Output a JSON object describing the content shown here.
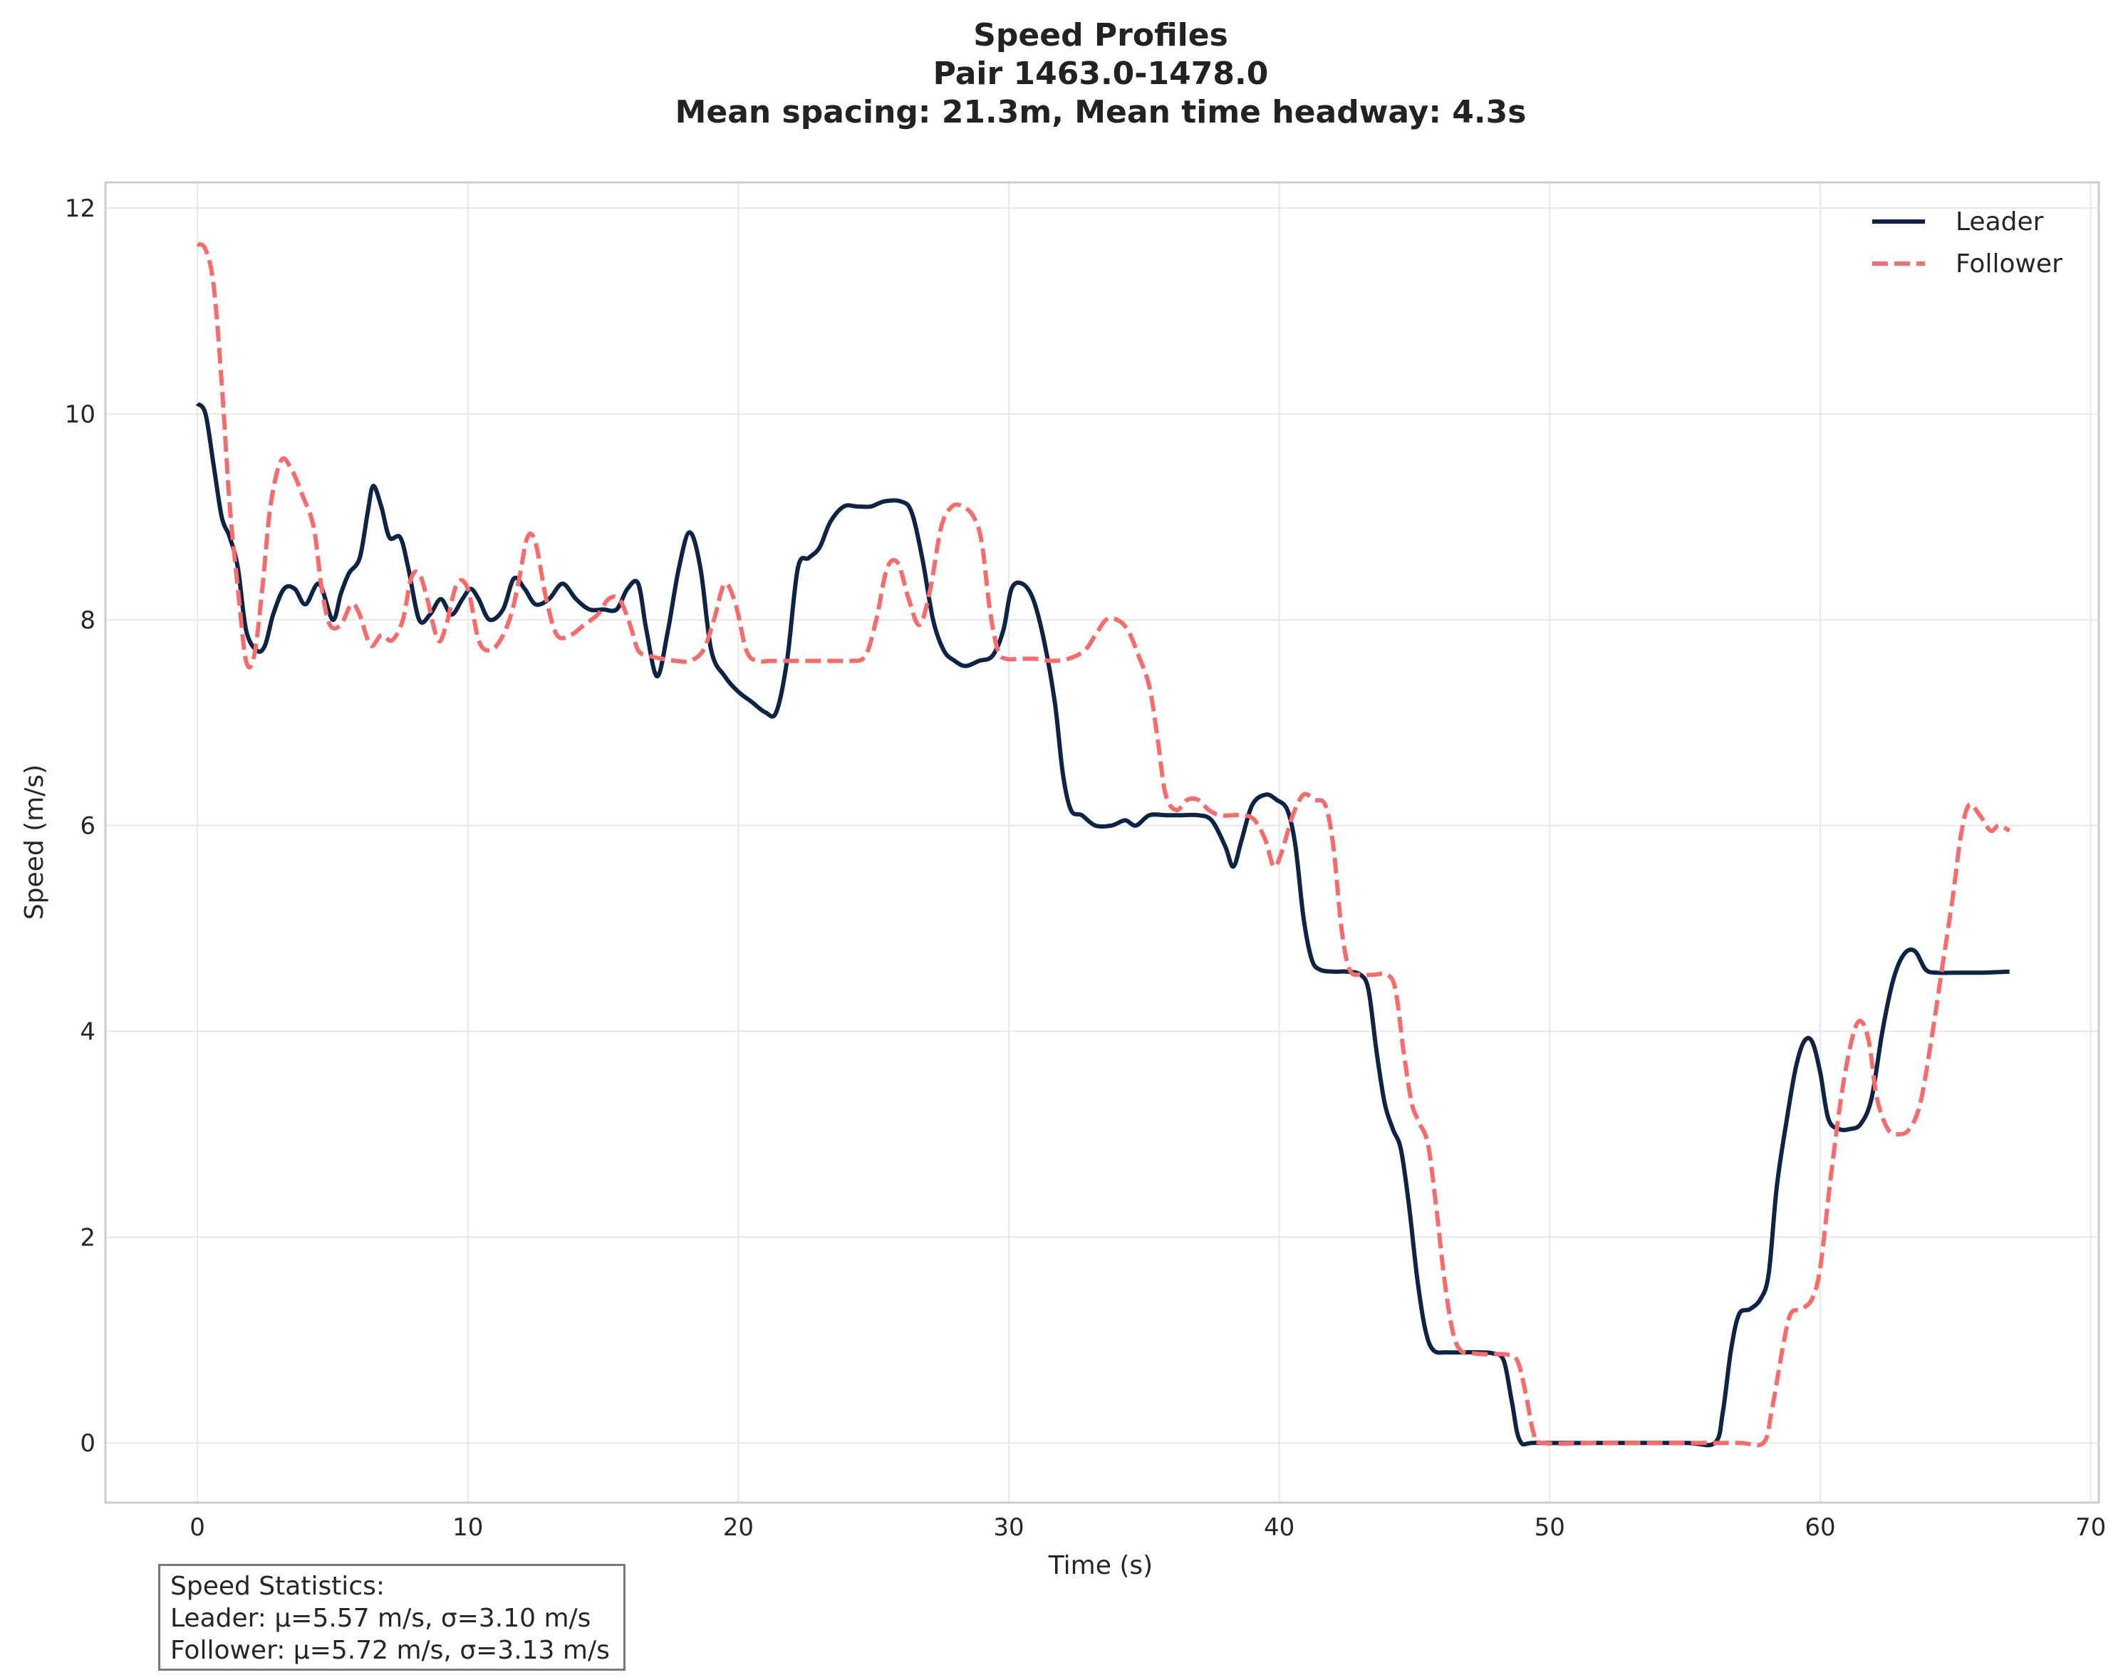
{
  "chart_data": {
    "type": "line",
    "title_lines": [
      "Speed Profiles",
      "Pair 1463.0-1478.0",
      "Mean spacing: 21.3m, Mean time headway: 4.3s"
    ],
    "xlabel": "Time (s)",
    "ylabel": "Speed (m/s)",
    "xlim": [
      -3.4,
      70.3
    ],
    "ylim": [
      -0.58,
      12.25
    ],
    "xticks": [
      0,
      10,
      20,
      30,
      40,
      50,
      60,
      70
    ],
    "yticks": [
      0,
      2,
      4,
      6,
      8,
      10,
      12
    ],
    "grid": true,
    "legend_position": "top-right",
    "series": [
      {
        "name": "Leader",
        "color": "#0d2447",
        "dash": "solid",
        "points": [
          [
            0,
            10.1
          ],
          [
            0.3,
            10.0
          ],
          [
            0.6,
            9.5
          ],
          [
            0.9,
            9.0
          ],
          [
            1.2,
            8.8
          ],
          [
            1.5,
            8.5
          ],
          [
            1.8,
            7.9
          ],
          [
            2.2,
            7.7
          ],
          [
            2.5,
            7.75
          ],
          [
            2.8,
            8.05
          ],
          [
            3.2,
            8.3
          ],
          [
            3.6,
            8.3
          ],
          [
            4.0,
            8.15
          ],
          [
            4.5,
            8.35
          ],
          [
            5.0,
            8.0
          ],
          [
            5.3,
            8.25
          ],
          [
            5.6,
            8.45
          ],
          [
            6.0,
            8.6
          ],
          [
            6.3,
            9.05
          ],
          [
            6.5,
            9.3
          ],
          [
            6.8,
            9.1
          ],
          [
            7.1,
            8.8
          ],
          [
            7.5,
            8.8
          ],
          [
            7.8,
            8.5
          ],
          [
            8.2,
            8.0
          ],
          [
            8.6,
            8.05
          ],
          [
            9.0,
            8.2
          ],
          [
            9.4,
            8.05
          ],
          [
            9.8,
            8.2
          ],
          [
            10.1,
            8.3
          ],
          [
            10.4,
            8.2
          ],
          [
            10.8,
            8.0
          ],
          [
            11.3,
            8.1
          ],
          [
            11.7,
            8.4
          ],
          [
            12.1,
            8.3
          ],
          [
            12.5,
            8.15
          ],
          [
            13.0,
            8.2
          ],
          [
            13.5,
            8.35
          ],
          [
            14.0,
            8.2
          ],
          [
            14.5,
            8.1
          ],
          [
            15.0,
            8.1
          ],
          [
            15.5,
            8.1
          ],
          [
            15.9,
            8.3
          ],
          [
            16.3,
            8.35
          ],
          [
            16.6,
            7.9
          ],
          [
            17.0,
            7.45
          ],
          [
            17.4,
            7.9
          ],
          [
            17.8,
            8.5
          ],
          [
            18.2,
            8.85
          ],
          [
            18.6,
            8.5
          ],
          [
            19.0,
            7.7
          ],
          [
            19.5,
            7.45
          ],
          [
            20.0,
            7.3
          ],
          [
            20.5,
            7.2
          ],
          [
            21.0,
            7.1
          ],
          [
            21.4,
            7.1
          ],
          [
            21.8,
            7.6
          ],
          [
            22.2,
            8.5
          ],
          [
            22.6,
            8.6
          ],
          [
            23.0,
            8.7
          ],
          [
            23.4,
            8.95
          ],
          [
            23.9,
            9.1
          ],
          [
            24.4,
            9.1
          ],
          [
            24.9,
            9.1
          ],
          [
            25.4,
            9.15
          ],
          [
            26.0,
            9.15
          ],
          [
            26.4,
            9.05
          ],
          [
            26.8,
            8.6
          ],
          [
            27.2,
            8.0
          ],
          [
            27.6,
            7.7
          ],
          [
            28.0,
            7.6
          ],
          [
            28.4,
            7.55
          ],
          [
            28.9,
            7.6
          ],
          [
            29.4,
            7.65
          ],
          [
            29.8,
            7.9
          ],
          [
            30.1,
            8.3
          ],
          [
            30.5,
            8.35
          ],
          [
            30.9,
            8.2
          ],
          [
            31.3,
            7.8
          ],
          [
            31.7,
            7.2
          ],
          [
            32.0,
            6.5
          ],
          [
            32.3,
            6.15
          ],
          [
            32.7,
            6.1
          ],
          [
            33.2,
            6.0
          ],
          [
            33.8,
            6.0
          ],
          [
            34.3,
            6.05
          ],
          [
            34.7,
            6.0
          ],
          [
            35.2,
            6.1
          ],
          [
            35.8,
            6.1
          ],
          [
            36.4,
            6.1
          ],
          [
            37.0,
            6.1
          ],
          [
            37.5,
            6.05
          ],
          [
            38.0,
            5.8
          ],
          [
            38.3,
            5.6
          ],
          [
            38.6,
            5.85
          ],
          [
            39.0,
            6.2
          ],
          [
            39.5,
            6.3
          ],
          [
            39.9,
            6.25
          ],
          [
            40.3,
            6.15
          ],
          [
            40.6,
            5.8
          ],
          [
            40.9,
            5.1
          ],
          [
            41.2,
            4.7
          ],
          [
            41.5,
            4.6
          ],
          [
            42.0,
            4.58
          ],
          [
            42.5,
            4.58
          ],
          [
            43.0,
            4.55
          ],
          [
            43.3,
            4.4
          ],
          [
            43.6,
            3.8
          ],
          [
            43.9,
            3.3
          ],
          [
            44.2,
            3.05
          ],
          [
            44.5,
            2.85
          ],
          [
            44.8,
            2.3
          ],
          [
            45.1,
            1.6
          ],
          [
            45.4,
            1.1
          ],
          [
            45.7,
            0.9
          ],
          [
            46.2,
            0.88
          ],
          [
            46.8,
            0.88
          ],
          [
            47.4,
            0.88
          ],
          [
            47.9,
            0.87
          ],
          [
            48.3,
            0.8
          ],
          [
            48.6,
            0.4
          ],
          [
            48.9,
            0.02
          ],
          [
            49.5,
            0.0
          ],
          [
            52,
            0.0
          ],
          [
            55,
            0.0
          ],
          [
            56.1,
            0.0
          ],
          [
            56.4,
            0.3
          ],
          [
            56.7,
            0.9
          ],
          [
            57.0,
            1.25
          ],
          [
            57.4,
            1.3
          ],
          [
            57.8,
            1.4
          ],
          [
            58.1,
            1.65
          ],
          [
            58.4,
            2.5
          ],
          [
            58.8,
            3.2
          ],
          [
            59.1,
            3.65
          ],
          [
            59.4,
            3.9
          ],
          [
            59.7,
            3.9
          ],
          [
            60.0,
            3.6
          ],
          [
            60.3,
            3.15
          ],
          [
            60.7,
            3.05
          ],
          [
            61.1,
            3.05
          ],
          [
            61.5,
            3.1
          ],
          [
            61.9,
            3.35
          ],
          [
            62.3,
            4.0
          ],
          [
            62.7,
            4.5
          ],
          [
            63.1,
            4.75
          ],
          [
            63.5,
            4.78
          ],
          [
            63.9,
            4.6
          ],
          [
            64.3,
            4.57
          ],
          [
            65,
            4.57
          ],
          [
            66,
            4.57
          ],
          [
            67,
            4.58
          ]
        ]
      },
      {
        "name": "Follower",
        "color": "#f96b6b",
        "dash": "dashed",
        "points": [
          [
            0,
            11.65
          ],
          [
            0.3,
            11.6
          ],
          [
            0.6,
            11.25
          ],
          [
            0.9,
            10.3
          ],
          [
            1.2,
            9.1
          ],
          [
            1.5,
            8.3
          ],
          [
            1.8,
            7.6
          ],
          [
            2.1,
            7.65
          ],
          [
            2.4,
            8.3
          ],
          [
            2.7,
            9.1
          ],
          [
            3.1,
            9.55
          ],
          [
            3.5,
            9.45
          ],
          [
            3.9,
            9.2
          ],
          [
            4.3,
            8.9
          ],
          [
            4.6,
            8.3
          ],
          [
            4.9,
            7.95
          ],
          [
            5.3,
            7.95
          ],
          [
            5.7,
            8.15
          ],
          [
            6.0,
            8.05
          ],
          [
            6.4,
            7.75
          ],
          [
            6.8,
            7.85
          ],
          [
            7.2,
            7.8
          ],
          [
            7.6,
            8.0
          ],
          [
            7.9,
            8.4
          ],
          [
            8.2,
            8.45
          ],
          [
            8.5,
            8.2
          ],
          [
            8.9,
            7.8
          ],
          [
            9.2,
            7.95
          ],
          [
            9.6,
            8.35
          ],
          [
            10.0,
            8.3
          ],
          [
            10.4,
            7.8
          ],
          [
            10.8,
            7.7
          ],
          [
            11.2,
            7.8
          ],
          [
            11.6,
            8.05
          ],
          [
            11.9,
            8.4
          ],
          [
            12.2,
            8.8
          ],
          [
            12.5,
            8.75
          ],
          [
            12.9,
            8.2
          ],
          [
            13.3,
            7.85
          ],
          [
            13.8,
            7.85
          ],
          [
            14.3,
            7.95
          ],
          [
            14.8,
            8.05
          ],
          [
            15.2,
            8.2
          ],
          [
            15.6,
            8.2
          ],
          [
            16.0,
            7.95
          ],
          [
            16.3,
            7.7
          ],
          [
            16.7,
            7.65
          ],
          [
            17.2,
            7.62
          ],
          [
            17.7,
            7.6
          ],
          [
            18.2,
            7.6
          ],
          [
            18.7,
            7.7
          ],
          [
            19.1,
            8.0
          ],
          [
            19.5,
            8.35
          ],
          [
            19.9,
            8.15
          ],
          [
            20.3,
            7.7
          ],
          [
            20.7,
            7.6
          ],
          [
            21.2,
            7.6
          ],
          [
            21.7,
            7.6
          ],
          [
            22.2,
            7.6
          ],
          [
            22.7,
            7.6
          ],
          [
            23.2,
            7.6
          ],
          [
            23.7,
            7.6
          ],
          [
            24.2,
            7.6
          ],
          [
            24.7,
            7.65
          ],
          [
            25.1,
            8.0
          ],
          [
            25.5,
            8.5
          ],
          [
            25.9,
            8.55
          ],
          [
            26.3,
            8.2
          ],
          [
            26.7,
            7.95
          ],
          [
            27.1,
            8.3
          ],
          [
            27.5,
            8.9
          ],
          [
            27.9,
            9.1
          ],
          [
            28.3,
            9.1
          ],
          [
            28.7,
            9.0
          ],
          [
            29.0,
            8.75
          ],
          [
            29.3,
            8.1
          ],
          [
            29.6,
            7.7
          ],
          [
            29.9,
            7.62
          ],
          [
            30.4,
            7.62
          ],
          [
            31.0,
            7.62
          ],
          [
            31.6,
            7.6
          ],
          [
            32.2,
            7.62
          ],
          [
            32.8,
            7.7
          ],
          [
            33.2,
            7.85
          ],
          [
            33.6,
            8.0
          ],
          [
            34.0,
            8.0
          ],
          [
            34.4,
            7.9
          ],
          [
            34.8,
            7.65
          ],
          [
            35.2,
            7.35
          ],
          [
            35.5,
            6.85
          ],
          [
            35.8,
            6.3
          ],
          [
            36.2,
            6.15
          ],
          [
            36.6,
            6.25
          ],
          [
            37.0,
            6.25
          ],
          [
            37.4,
            6.15
          ],
          [
            37.8,
            6.1
          ],
          [
            38.3,
            6.1
          ],
          [
            38.7,
            6.1
          ],
          [
            39.1,
            6.05
          ],
          [
            39.5,
            5.85
          ],
          [
            39.8,
            5.6
          ],
          [
            40.1,
            5.75
          ],
          [
            40.5,
            6.1
          ],
          [
            40.9,
            6.3
          ],
          [
            41.3,
            6.25
          ],
          [
            41.7,
            6.2
          ],
          [
            42.0,
            5.8
          ],
          [
            42.3,
            5.0
          ],
          [
            42.6,
            4.6
          ],
          [
            43.0,
            4.55
          ],
          [
            43.5,
            4.55
          ],
          [
            44.0,
            4.55
          ],
          [
            44.3,
            4.4
          ],
          [
            44.6,
            3.8
          ],
          [
            44.9,
            3.3
          ],
          [
            45.2,
            3.1
          ],
          [
            45.5,
            2.9
          ],
          [
            45.8,
            2.3
          ],
          [
            46.1,
            1.6
          ],
          [
            46.4,
            1.1
          ],
          [
            46.7,
            0.9
          ],
          [
            47.2,
            0.87
          ],
          [
            47.8,
            0.86
          ],
          [
            48.4,
            0.86
          ],
          [
            48.8,
            0.8
          ],
          [
            49.1,
            0.5
          ],
          [
            49.4,
            0.1
          ],
          [
            49.7,
            0.0
          ],
          [
            52,
            0.0
          ],
          [
            55,
            0.0
          ],
          [
            57,
            0.0
          ],
          [
            57.9,
            0.0
          ],
          [
            58.2,
            0.3
          ],
          [
            58.6,
            0.9
          ],
          [
            58.9,
            1.25
          ],
          [
            59.3,
            1.3
          ],
          [
            59.7,
            1.4
          ],
          [
            60.0,
            1.7
          ],
          [
            60.4,
            2.6
          ],
          [
            60.8,
            3.4
          ],
          [
            61.2,
            3.95
          ],
          [
            61.5,
            4.1
          ],
          [
            61.8,
            3.9
          ],
          [
            62.1,
            3.35
          ],
          [
            62.5,
            3.05
          ],
          [
            62.9,
            3.0
          ],
          [
            63.3,
            3.05
          ],
          [
            63.7,
            3.3
          ],
          [
            64.1,
            3.9
          ],
          [
            64.5,
            4.6
          ],
          [
            64.9,
            5.3
          ],
          [
            65.2,
            5.9
          ],
          [
            65.5,
            6.2
          ],
          [
            65.9,
            6.1
          ],
          [
            66.3,
            5.95
          ],
          [
            66.6,
            6.0
          ],
          [
            67,
            5.95
          ]
        ]
      }
    ]
  },
  "stats": {
    "heading": "Speed Statistics:",
    "leader": "Leader: μ=5.57 m/s, σ=3.10 m/s",
    "follower": "Follower: μ=5.72 m/s, σ=3.13 m/s"
  }
}
